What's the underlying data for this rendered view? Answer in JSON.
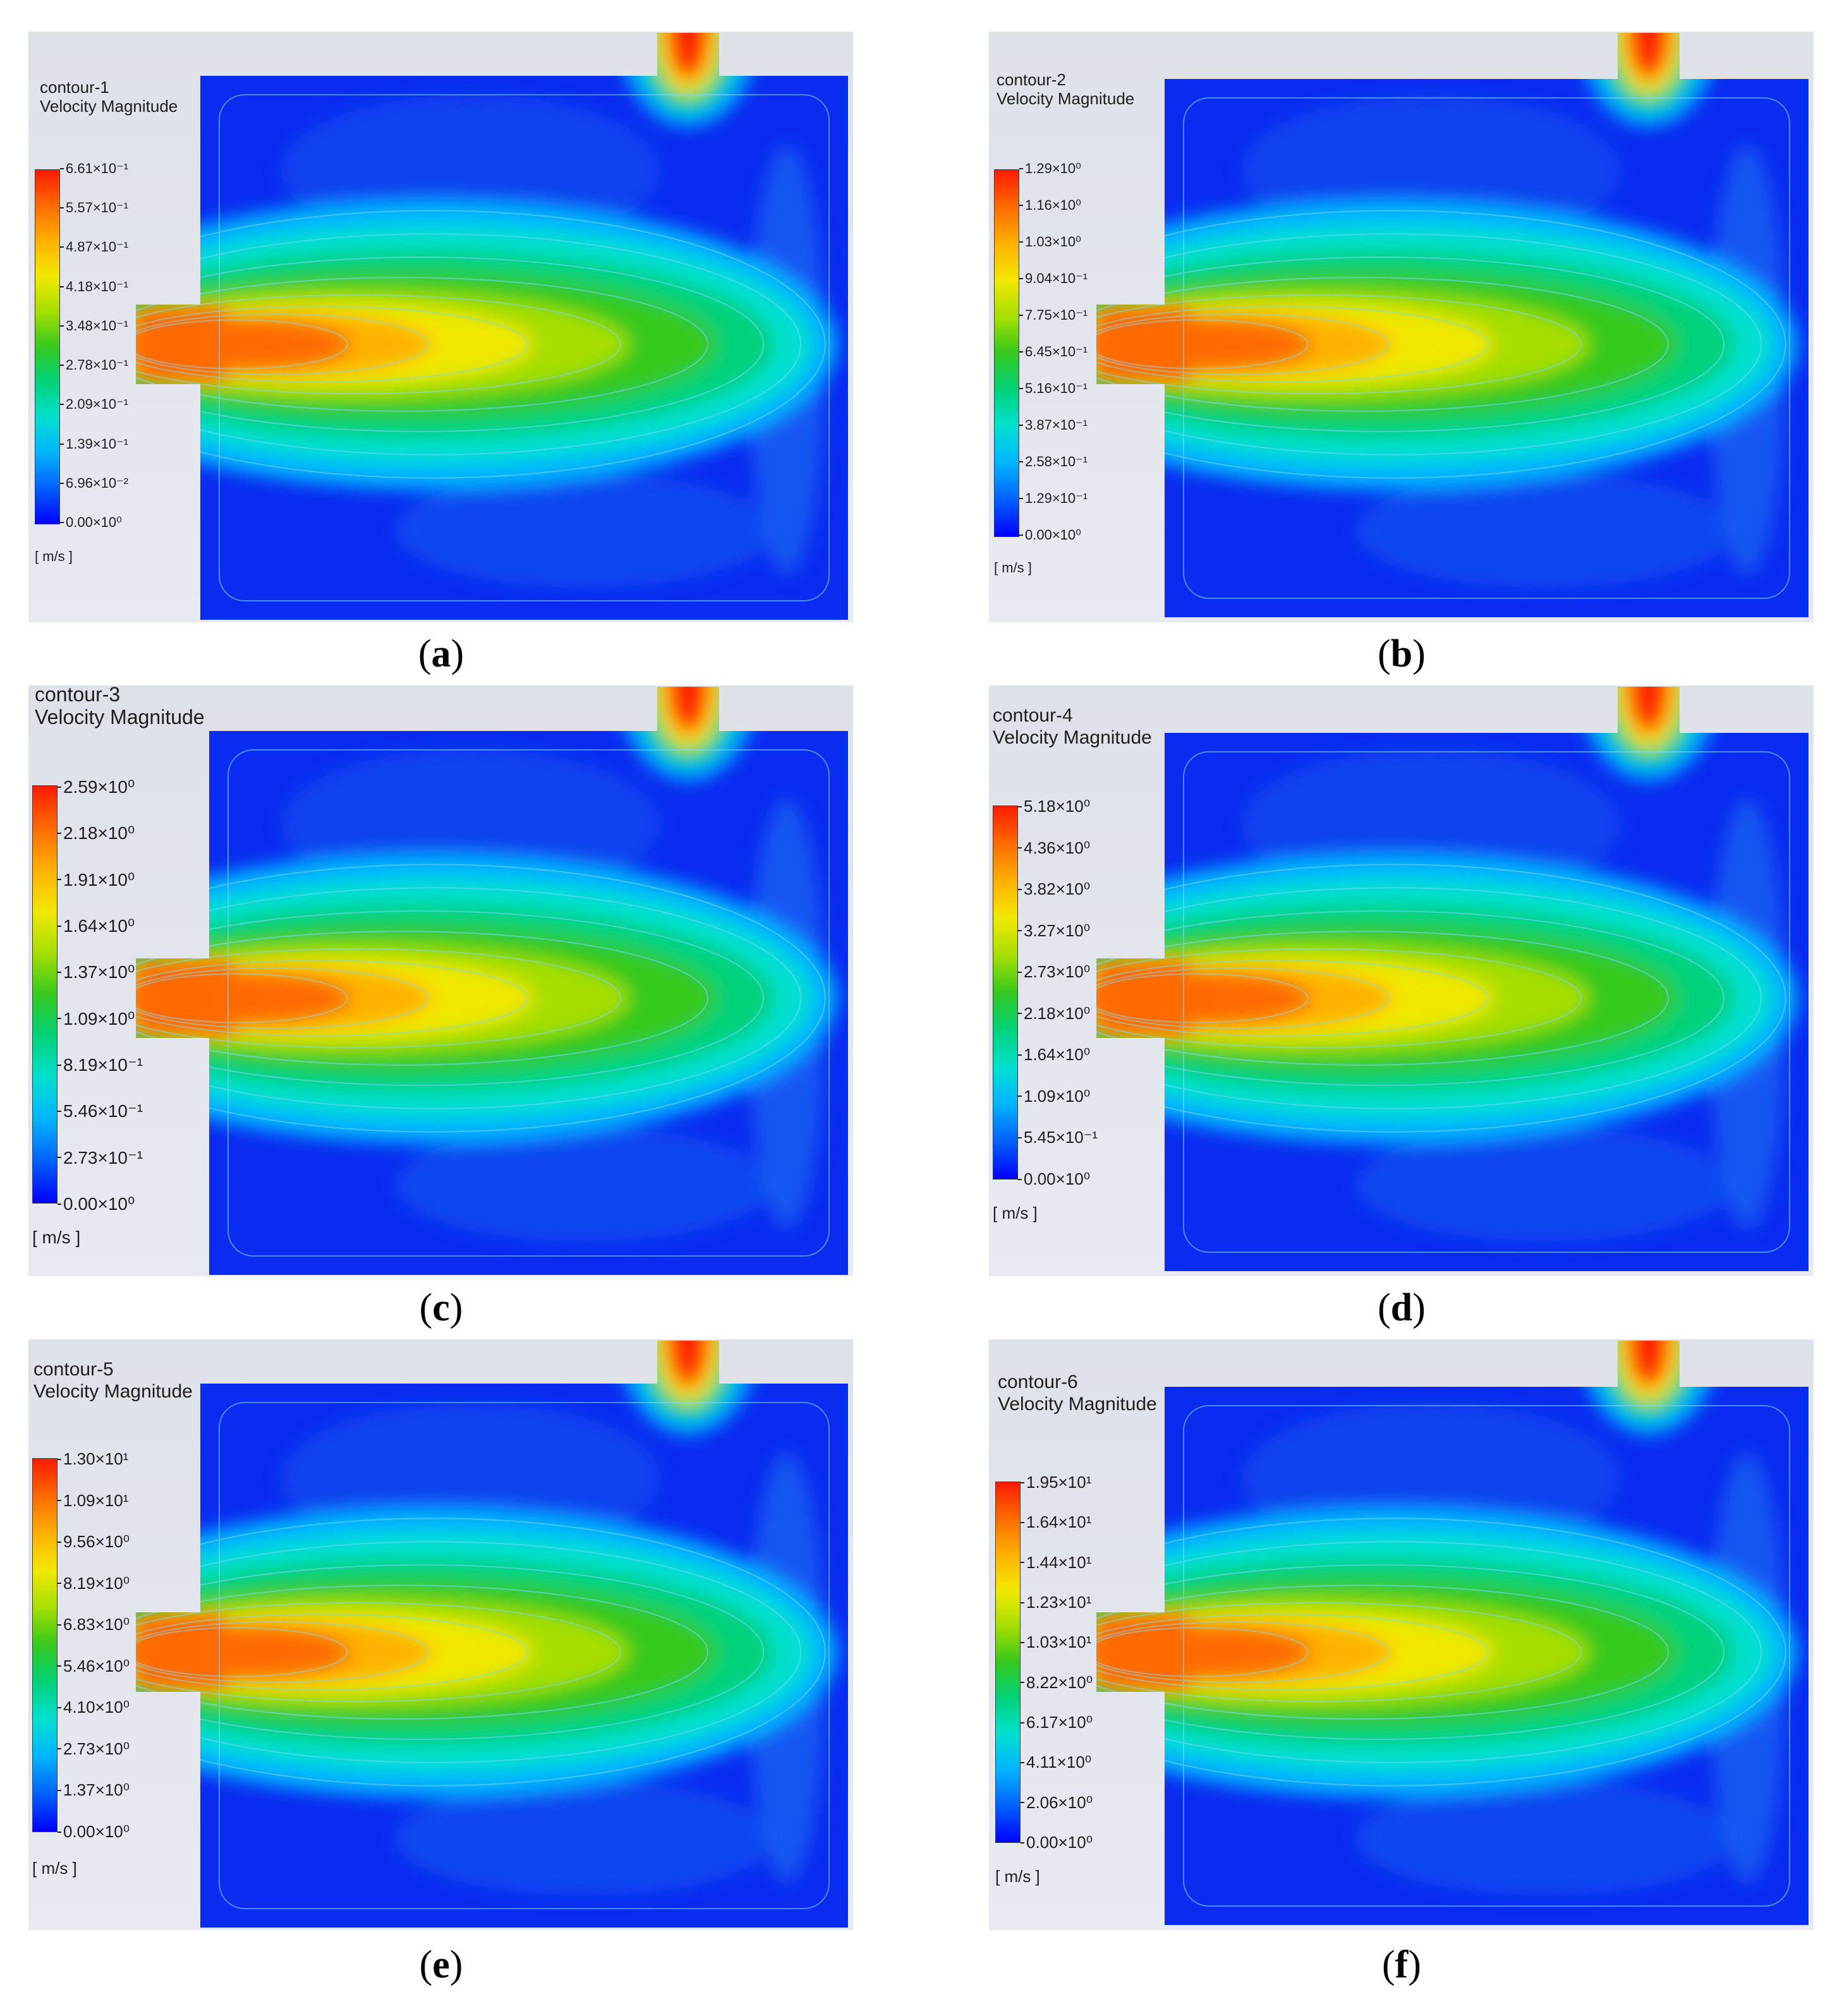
{
  "panels": [
    {
      "id": "a",
      "contour_name": "contour-1",
      "variable": "Velocity Magnitude",
      "unit": "[ m/s ]",
      "levels": [
        "6.61×10⁻¹",
        "5.57×10⁻¹",
        "4.87×10⁻¹",
        "4.18×10⁻¹",
        "3.48×10⁻¹",
        "2.78×10⁻¹",
        "2.09×10⁻¹",
        "1.39×10⁻¹",
        "6.96×10⁻²",
        "0.00×10⁰"
      ],
      "caption_letter": "a"
    },
    {
      "id": "b",
      "contour_name": "contour-2",
      "variable": "Velocity Magnitude",
      "unit": "[ m/s ]",
      "levels": [
        "1.29×10⁰",
        "1.16×10⁰",
        "1.03×10⁰",
        "9.04×10⁻¹",
        "7.75×10⁻¹",
        "6.45×10⁻¹",
        "5.16×10⁻¹",
        "3.87×10⁻¹",
        "2.58×10⁻¹",
        "1.29×10⁻¹",
        "0.00×10⁰"
      ],
      "caption_letter": "b"
    },
    {
      "id": "c",
      "contour_name": "contour-3",
      "variable": "Velocity Magnitude",
      "unit": "[ m/s ]",
      "levels": [
        "2.59×10⁰",
        "2.18×10⁰",
        "1.91×10⁰",
        "1.64×10⁰",
        "1.37×10⁰",
        "1.09×10⁰",
        "8.19×10⁻¹",
        "5.46×10⁻¹",
        "2.73×10⁻¹",
        "0.00×10⁰"
      ],
      "caption_letter": "c"
    },
    {
      "id": "d",
      "contour_name": "contour-4",
      "variable": "Velocity Magnitude",
      "unit": "[ m/s ]",
      "levels": [
        "5.18×10⁰",
        "4.36×10⁰",
        "3.82×10⁰",
        "3.27×10⁰",
        "2.73×10⁰",
        "2.18×10⁰",
        "1.64×10⁰",
        "1.09×10⁰",
        "5.45×10⁻¹",
        "0.00×10⁰"
      ],
      "caption_letter": "d"
    },
    {
      "id": "e",
      "contour_name": "contour-5",
      "variable": "Velocity Magnitude",
      "unit": "[ m/s ]",
      "levels": [
        "1.30×10¹",
        "1.09×10¹",
        "9.56×10⁰",
        "8.19×10⁰",
        "6.83×10⁰",
        "5.46×10⁰",
        "4.10×10⁰",
        "2.73×10⁰",
        "1.37×10⁰",
        "0.00×10⁰"
      ],
      "caption_letter": "e"
    },
    {
      "id": "f",
      "contour_name": "contour-6",
      "variable": "Velocity Magnitude",
      "unit": "[ m/s ]",
      "levels": [
        "1.95×10¹",
        "1.64×10¹",
        "1.44×10¹",
        "1.23×10¹",
        "1.03×10¹",
        "8.22×10⁰",
        "6.17×10⁰",
        "4.11×10⁰",
        "2.06×10⁰",
        "0.00×10⁰"
      ],
      "caption_letter": "f"
    }
  ],
  "captions": {
    "open": "(",
    "close": ")"
  },
  "colors": {
    "background_gray": "#e3e6ec",
    "colormap": [
      "#0000ff",
      "#0060ff",
      "#00b4ff",
      "#00e0d0",
      "#00d27a",
      "#35c91e",
      "#a6de00",
      "#f2e800",
      "#ffb000",
      "#ff6a00",
      "#ff1a00"
    ]
  }
}
